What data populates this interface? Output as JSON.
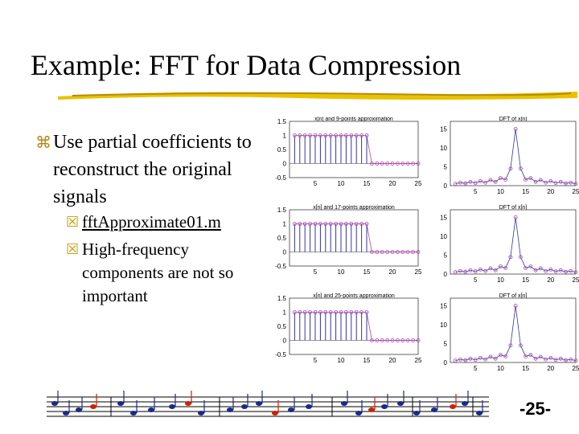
{
  "slide": {
    "title": "Example: FFT for Data Compression",
    "page_number": "-25-"
  },
  "bullets": {
    "main": "Use partial coefficients to reconstruct the original signals",
    "main_icon": "z-bullet-icon",
    "sub": [
      {
        "text": "fftApproximate01.m",
        "is_link": true,
        "icon": "y-bullet-icon"
      },
      {
        "text": "High-frequency components are not so important",
        "is_link": false,
        "icon": "y-bullet-icon"
      }
    ]
  },
  "chart_data": [
    {
      "type": "line",
      "title": "x[n] and 9-points approximation",
      "x_ticks": [
        "5",
        "10",
        "15",
        "20",
        "25"
      ],
      "y_ticks": [
        "1.5",
        "1",
        "0.5",
        "0",
        "-0.5"
      ]
    },
    {
      "type": "line",
      "title": "DFT of x[n]",
      "x_ticks": [
        "5",
        "10",
        "15",
        "20",
        "25"
      ],
      "y_ticks": [
        "15",
        "10",
        "5",
        "0"
      ]
    },
    {
      "type": "line",
      "title": "x[n] and 17-points approximation",
      "x_ticks": [
        "5",
        "10",
        "15",
        "20",
        "25"
      ],
      "y_ticks": [
        "1.5",
        "1",
        "0.5",
        "0",
        "-0.5"
      ]
    },
    {
      "type": "line",
      "title": "DFT of x[n]",
      "x_ticks": [
        "5",
        "10",
        "15",
        "20",
        "25"
      ],
      "y_ticks": [
        "15",
        "10",
        "5",
        "0"
      ]
    },
    {
      "type": "line",
      "title": "x[n] and 25-points approximation",
      "x_ticks": [
        "5",
        "10",
        "15",
        "20",
        "25"
      ],
      "y_ticks": [
        "1.5",
        "1",
        "0.5",
        "0",
        "-0.5"
      ]
    },
    {
      "type": "line",
      "title": "DFT of x[n]",
      "x_ticks": [
        "5",
        "10",
        "15",
        "20",
        "25"
      ],
      "y_ticks": [
        "15",
        "10",
        "5",
        "0"
      ]
    }
  ],
  "signal": {
    "x": [
      1,
      2,
      3,
      4,
      5,
      6,
      7,
      8,
      9,
      10,
      11,
      12,
      13,
      14,
      15,
      16,
      17,
      18,
      19,
      20,
      21,
      22,
      23,
      24,
      25
    ],
    "values": [
      1,
      1,
      1,
      1,
      1,
      1,
      1,
      1,
      1,
      1,
      1,
      1,
      1,
      1,
      1,
      0,
      0,
      0,
      0,
      0,
      0,
      0,
      0,
      0,
      0
    ]
  },
  "dft": {
    "x": [
      1,
      2,
      3,
      4,
      5,
      6,
      7,
      8,
      9,
      10,
      11,
      12,
      13,
      14,
      15,
      16,
      17,
      18,
      19,
      20,
      21,
      22,
      23,
      24,
      25
    ],
    "values": [
      0.5,
      0.8,
      0.6,
      1,
      0.7,
      1.2,
      0.8,
      1.5,
      1,
      2,
      1.6,
      4.5,
      15,
      4.5,
      1.6,
      2,
      1,
      1.5,
      0.8,
      1.2,
      0.7,
      1,
      0.6,
      0.8,
      0.5
    ]
  },
  "colors": {
    "accent": "#c8a000",
    "stem": "#3333aa",
    "marker": "#aa44aa"
  }
}
